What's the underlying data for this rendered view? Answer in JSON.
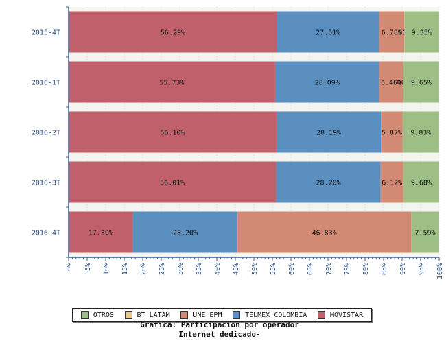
{
  "chart_data": {
    "type": "bar",
    "orientation": "horizontal",
    "stacked": true,
    "categories": [
      "2015-4T",
      "2016-1T",
      "2016-2T",
      "2016-3T",
      "2016-4T"
    ],
    "series": [
      {
        "name": "MOVISTAR",
        "color": "#c0606a",
        "values": [
          56.29,
          55.73,
          56.1,
          56.01,
          17.39
        ],
        "labels": [
          "56.29%",
          "55.73%",
          "56.10%",
          "56.01%",
          "17.39%"
        ]
      },
      {
        "name": "TELMEX COLOMBIA",
        "color": "#5b8fc0",
        "values": [
          27.51,
          28.09,
          28.19,
          28.2,
          28.2
        ],
        "labels": [
          "27.51%",
          "28.09%",
          "28.19%",
          "28.20%",
          "28.20%"
        ]
      },
      {
        "name": "UNE EPM",
        "color": "#d28a74",
        "values": [
          6.78,
          6.46,
          5.87,
          6.12,
          46.83
        ],
        "labels": [
          "6.78%",
          "6.46%",
          "5.87%",
          "6.12%",
          "46.83%"
        ]
      },
      {
        "name": "BT LATAM",
        "color": "#ecc888",
        "values": [
          0.06,
          0.06,
          0.0,
          0.0,
          0.0
        ],
        "labels": [
          "06%",
          "06%",
          "",
          "",
          ""
        ]
      },
      {
        "name": "OTROS",
        "color": "#9dbf86",
        "values": [
          9.35,
          9.65,
          9.83,
          9.68,
          7.59
        ],
        "labels": [
          "9.35%",
          "9.65%",
          "9.83%",
          "9.68%",
          "7.59%"
        ]
      }
    ],
    "xlim": [
      0,
      100
    ],
    "x_ticks": [
      "0%",
      "5%",
      "10%",
      "15%",
      "20%",
      "25%",
      "30%",
      "35%",
      "40%",
      "45%",
      "50%",
      "55%",
      "60%",
      "65%",
      "70%",
      "75%",
      "80%",
      "85%",
      "90%",
      "95%",
      "100%"
    ],
    "legend": {
      "position": "bottom",
      "order": [
        "OTROS",
        "BT LATAM",
        "UNE EPM",
        "TELMEX COLOMBIA",
        "MOVISTAR"
      ]
    },
    "caption_line1": "Grafica: Participacion por operador",
    "caption_line2": "Internet dedicado-",
    "grid": true
  }
}
